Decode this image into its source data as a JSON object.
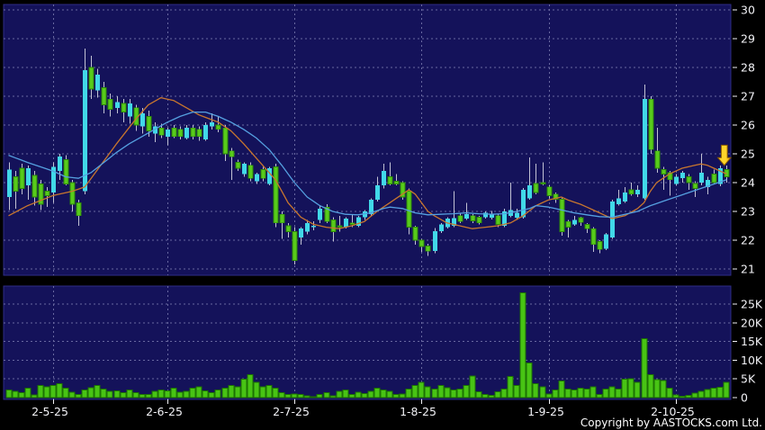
{
  "copyright": "Copyright by AASTOCKS.com Ltd.",
  "colors": {
    "background": "#000000",
    "panel_bg": "#14125a",
    "panel_border": "#2e2c86",
    "grid": "#8585b8",
    "axis_text": "#f2f2f6",
    "wick": "#c2c2d4",
    "candle_up": "#41d8e8",
    "candle_down": "#58cb1b",
    "candle_down_border": "#2d8a08",
    "volume_bar": "#48c414",
    "volume_bar_border": "#1c7203",
    "ma_fast": "#c8762e",
    "ma_slow": "#55a0e0",
    "arrow_fill": "#ffd42a",
    "arrow_fill_dark": "#e89b00",
    "arrow_border": "#8a5a00"
  },
  "chart_data": {
    "type": "candlestick",
    "title": "",
    "price_axis_labels": [
      "30",
      "29",
      "28",
      "27",
      "26",
      "25",
      "24",
      "23",
      "22",
      "21"
    ],
    "price_axis_values": [
      30,
      29,
      28,
      27,
      26,
      25,
      24,
      23,
      22,
      21
    ],
    "price_range": [
      21,
      30
    ],
    "volume_axis_labels": [
      "25K",
      "20K",
      "15K",
      "10K",
      "5K",
      "0"
    ],
    "volume_axis_values_k": [
      25,
      20,
      15,
      10,
      5,
      0
    ],
    "volume_range_k": [
      0,
      25
    ],
    "date_labels": [
      "2-5-25",
      "2-6-25",
      "2-7-25",
      "1-8-25",
      "1-9-25",
      "2-10-25"
    ],
    "x_tick_indices": [
      7,
      25,
      45,
      65,
      85,
      105
    ],
    "grid": "dashed",
    "legend": "none",
    "candles_format": [
      "open",
      "high",
      "low",
      "close",
      "volume_k"
    ],
    "candles": [
      [
        23.5,
        24.7,
        23.05,
        24.45,
        2.1
      ],
      [
        24.2,
        24.4,
        23.1,
        23.7,
        1.7
      ],
      [
        24.5,
        24.65,
        23.6,
        23.8,
        1.3
      ],
      [
        23.9,
        24.6,
        23.4,
        24.5,
        2.5
      ],
      [
        24.25,
        24.4,
        23.2,
        23.5,
        0.7
      ],
      [
        23.95,
        24.1,
        23.05,
        23.25,
        3.3
      ],
      [
        23.7,
        23.85,
        23.15,
        23.55,
        2.9
      ],
      [
        23.65,
        24.7,
        23.3,
        24.55,
        3.3
      ],
      [
        24.4,
        25.0,
        24.1,
        24.9,
        3.7
      ],
      [
        24.8,
        24.95,
        23.9,
        23.95,
        2.5
      ],
      [
        24.0,
        24.1,
        23.0,
        23.25,
        1.5
      ],
      [
        23.3,
        23.4,
        22.5,
        22.85,
        0.9
      ],
      [
        23.7,
        28.65,
        23.6,
        27.9,
        2.1
      ],
      [
        28.0,
        28.4,
        26.9,
        27.25,
        2.6
      ],
      [
        27.2,
        27.95,
        26.95,
        27.75,
        3.3
      ],
      [
        27.3,
        27.5,
        26.4,
        26.7,
        2.3
      ],
      [
        26.9,
        27.1,
        26.3,
        26.55,
        1.7
      ],
      [
        26.6,
        27.0,
        26.4,
        26.8,
        1.8
      ],
      [
        26.75,
        26.9,
        26.1,
        26.45,
        1.3
      ],
      [
        26.3,
        26.9,
        26.05,
        26.75,
        2.1
      ],
      [
        26.6,
        26.7,
        25.8,
        26.0,
        1.3
      ],
      [
        25.95,
        26.6,
        25.7,
        26.4,
        0.9
      ],
      [
        26.3,
        26.5,
        25.6,
        25.8,
        0.9
      ],
      [
        25.7,
        26.1,
        25.4,
        25.95,
        1.7
      ],
      [
        25.9,
        26.05,
        25.55,
        25.65,
        2.1
      ],
      [
        25.6,
        25.9,
        25.3,
        25.85,
        1.8
      ],
      [
        25.9,
        26.0,
        25.55,
        25.6,
        2.5
      ],
      [
        25.85,
        25.95,
        25.5,
        25.6,
        1.4
      ],
      [
        25.55,
        26.0,
        25.5,
        25.9,
        1.7
      ],
      [
        25.9,
        26.0,
        25.5,
        25.6,
        2.5
      ],
      [
        25.85,
        25.95,
        25.45,
        25.6,
        2.9
      ],
      [
        25.5,
        26.1,
        25.45,
        26.0,
        1.8
      ],
      [
        25.95,
        26.4,
        25.85,
        26.1,
        1.3
      ],
      [
        26.0,
        26.3,
        25.75,
        25.85,
        2.1
      ],
      [
        25.9,
        26.0,
        24.75,
        25.0,
        2.5
      ],
      [
        25.1,
        25.2,
        24.1,
        24.9,
        3.3
      ],
      [
        24.7,
        24.8,
        24.4,
        24.5,
        2.9
      ],
      [
        24.3,
        24.7,
        24.2,
        24.65,
        4.9
      ],
      [
        24.6,
        24.7,
        24.05,
        24.15,
        6.1
      ],
      [
        24.05,
        24.35,
        23.95,
        24.3,
        4.1
      ],
      [
        24.45,
        24.55,
        24.05,
        24.15,
        2.9
      ],
      [
        23.95,
        24.55,
        23.9,
        24.5,
        3.3
      ],
      [
        24.55,
        24.65,
        22.45,
        22.6,
        2.5
      ],
      [
        22.9,
        23.0,
        22.05,
        22.6,
        1.3
      ],
      [
        22.5,
        22.6,
        22.1,
        22.3,
        0.9
      ],
      [
        22.3,
        22.45,
        21.15,
        21.3,
        1.0
      ],
      [
        22.1,
        22.45,
        21.85,
        22.4,
        0.9
      ],
      [
        22.3,
        22.7,
        22.2,
        22.6,
        0.5
      ],
      [
        22.5,
        22.65,
        22.35,
        22.5,
        0.3
      ],
      [
        22.7,
        23.2,
        22.6,
        23.1,
        0.9
      ],
      [
        23.15,
        23.25,
        22.6,
        22.65,
        1.3
      ],
      [
        22.7,
        22.8,
        21.95,
        22.3,
        0.5
      ],
      [
        22.5,
        22.85,
        22.3,
        22.45,
        1.7
      ],
      [
        22.45,
        22.8,
        22.4,
        22.75,
        2.1
      ],
      [
        22.6,
        22.9,
        22.45,
        22.55,
        0.9
      ],
      [
        22.5,
        22.85,
        22.45,
        22.8,
        1.5
      ],
      [
        22.8,
        23.05,
        22.7,
        23.0,
        1.1
      ],
      [
        22.9,
        23.45,
        22.85,
        23.4,
        1.7
      ],
      [
        23.4,
        24.2,
        23.35,
        23.9,
        2.5
      ],
      [
        23.9,
        24.65,
        23.8,
        24.4,
        2.1
      ],
      [
        24.2,
        24.7,
        23.9,
        23.95,
        1.7
      ],
      [
        24.05,
        24.3,
        23.9,
        23.95,
        0.8
      ],
      [
        24.0,
        24.05,
        23.4,
        23.5,
        1.0
      ],
      [
        23.7,
        23.8,
        22.2,
        22.45,
        2.3
      ],
      [
        22.45,
        22.5,
        21.85,
        22.0,
        3.3
      ],
      [
        22.0,
        22.05,
        21.6,
        21.78,
        4.1
      ],
      [
        21.8,
        21.88,
        21.45,
        21.62,
        2.9
      ],
      [
        21.62,
        22.42,
        21.55,
        22.32,
        2.3
      ],
      [
        22.32,
        22.6,
        22.25,
        22.55,
        3.3
      ],
      [
        22.45,
        22.8,
        22.4,
        22.75,
        2.6
      ],
      [
        22.5,
        23.7,
        22.45,
        22.77,
        2.1
      ],
      [
        22.85,
        22.95,
        22.6,
        22.65,
        2.3
      ],
      [
        22.75,
        23.3,
        22.7,
        22.9,
        3.3
      ],
      [
        22.85,
        22.9,
        22.6,
        22.67,
        5.8
      ],
      [
        22.8,
        22.85,
        22.55,
        22.6,
        1.6
      ],
      [
        22.8,
        23.0,
        22.75,
        22.95,
        0.9
      ],
      [
        22.78,
        23.02,
        22.72,
        22.9,
        0.6
      ],
      [
        22.85,
        22.92,
        22.45,
        22.55,
        1.6
      ],
      [
        22.5,
        23.1,
        22.45,
        23.0,
        2.3
      ],
      [
        22.85,
        24.0,
        22.8,
        23.05,
        5.7
      ],
      [
        22.78,
        23.1,
        22.7,
        22.95,
        3.3
      ],
      [
        22.8,
        23.82,
        22.75,
        23.75,
        28.0
      ],
      [
        23.45,
        24.88,
        23.4,
        23.9,
        9.3
      ],
      [
        23.97,
        24.65,
        23.6,
        23.66,
        3.7
      ],
      [
        24.0,
        24.7,
        23.9,
        23.98,
        2.9
      ],
      [
        23.85,
        23.9,
        23.45,
        23.55,
        1.0
      ],
      [
        23.6,
        23.65,
        23.3,
        23.42,
        2.1
      ],
      [
        23.42,
        23.48,
        22.15,
        22.3,
        4.5
      ],
      [
        22.65,
        22.7,
        22.1,
        22.45,
        2.3
      ],
      [
        22.55,
        22.85,
        22.5,
        22.7,
        2.1
      ],
      [
        22.78,
        22.82,
        22.5,
        22.62,
        2.5
      ],
      [
        22.55,
        22.6,
        22.25,
        22.4,
        2.3
      ],
      [
        22.4,
        22.45,
        21.6,
        21.85,
        2.9
      ],
      [
        21.95,
        22.0,
        21.55,
        21.68,
        0.9
      ],
      [
        21.7,
        22.25,
        21.65,
        22.2,
        2.3
      ],
      [
        22.1,
        23.4,
        22.05,
        23.35,
        2.9
      ],
      [
        23.25,
        23.75,
        23.2,
        23.45,
        2.3
      ],
      [
        23.35,
        23.85,
        23.3,
        23.65,
        4.9
      ],
      [
        23.75,
        24.0,
        23.55,
        23.6,
        5.0
      ],
      [
        23.6,
        23.9,
        23.5,
        23.75,
        4.1
      ],
      [
        23.45,
        27.4,
        23.4,
        26.9,
        15.7
      ],
      [
        26.9,
        27.0,
        25.0,
        25.15,
        6.1
      ],
      [
        25.1,
        25.9,
        24.35,
        24.5,
        4.8
      ],
      [
        24.45,
        24.55,
        23.75,
        24.3,
        4.6
      ],
      [
        24.35,
        24.4,
        23.55,
        24.1,
        2.5
      ],
      [
        23.95,
        24.3,
        23.9,
        24.2,
        0.7
      ],
      [
        24.15,
        24.4,
        24.0,
        24.35,
        0.4
      ],
      [
        24.2,
        24.3,
        23.75,
        24.0,
        0.6
      ],
      [
        23.97,
        24.05,
        23.5,
        23.8,
        1.2
      ],
      [
        24.0,
        25.0,
        23.9,
        24.35,
        1.7
      ],
      [
        23.85,
        24.2,
        23.6,
        24.1,
        2.2
      ],
      [
        24.3,
        24.45,
        23.95,
        24.0,
        2.5
      ],
      [
        23.95,
        24.6,
        23.88,
        24.5,
        2.8
      ],
      [
        24.45,
        24.6,
        24.0,
        24.2,
        4.1
      ]
    ],
    "overlays": [
      {
        "name": "ma-fast",
        "color_key": "ma_fast",
        "keypoints": [
          [
            0,
            22.85
          ],
          [
            3,
            23.2
          ],
          [
            7,
            23.55
          ],
          [
            10,
            23.7
          ],
          [
            12,
            23.85
          ],
          [
            14,
            24.45
          ],
          [
            17,
            25.35
          ],
          [
            20,
            26.2
          ],
          [
            22,
            26.7
          ],
          [
            24,
            26.95
          ],
          [
            26,
            26.85
          ],
          [
            28,
            26.6
          ],
          [
            30,
            26.35
          ],
          [
            33,
            26.1
          ],
          [
            35,
            25.8
          ],
          [
            37,
            25.35
          ],
          [
            39,
            24.85
          ],
          [
            41,
            24.35
          ],
          [
            42,
            24.1
          ],
          [
            44,
            23.3
          ],
          [
            46,
            22.8
          ],
          [
            48,
            22.55
          ],
          [
            50,
            22.45
          ],
          [
            52,
            22.4
          ],
          [
            54,
            22.5
          ],
          [
            56,
            22.65
          ],
          [
            58,
            23.0
          ],
          [
            60,
            23.3
          ],
          [
            62,
            23.6
          ],
          [
            63,
            23.75
          ],
          [
            64,
            23.6
          ],
          [
            65,
            23.3
          ],
          [
            66,
            23.0
          ],
          [
            67,
            22.85
          ],
          [
            69,
            22.6
          ],
          [
            71,
            22.5
          ],
          [
            73,
            22.4
          ],
          [
            75,
            22.45
          ],
          [
            77,
            22.5
          ],
          [
            79,
            22.6
          ],
          [
            81,
            22.85
          ],
          [
            83,
            23.2
          ],
          [
            85,
            23.4
          ],
          [
            87,
            23.5
          ],
          [
            88,
            23.4
          ],
          [
            90,
            23.25
          ],
          [
            92,
            23.05
          ],
          [
            94,
            22.85
          ],
          [
            95,
            22.75
          ],
          [
            97,
            22.85
          ],
          [
            99,
            23.1
          ],
          [
            100,
            23.3
          ],
          [
            101,
            23.7
          ],
          [
            102,
            24.0
          ],
          [
            104,
            24.3
          ],
          [
            106,
            24.5
          ],
          [
            108,
            24.6
          ],
          [
            109,
            24.65
          ],
          [
            110,
            24.6
          ],
          [
            111,
            24.5
          ],
          [
            112,
            24.4
          ],
          [
            113,
            24.3
          ]
        ]
      },
      {
        "name": "ma-slow",
        "color_key": "ma_slow",
        "keypoints": [
          [
            0,
            24.95
          ],
          [
            3,
            24.7
          ],
          [
            7,
            24.4
          ],
          [
            9,
            24.2
          ],
          [
            11,
            24.15
          ],
          [
            13,
            24.35
          ],
          [
            15,
            24.7
          ],
          [
            17,
            25.05
          ],
          [
            19,
            25.35
          ],
          [
            21,
            25.6
          ],
          [
            23,
            25.85
          ],
          [
            25,
            26.1
          ],
          [
            27,
            26.3
          ],
          [
            29,
            26.45
          ],
          [
            31,
            26.45
          ],
          [
            33,
            26.3
          ],
          [
            35,
            26.1
          ],
          [
            37,
            25.85
          ],
          [
            39,
            25.55
          ],
          [
            41,
            25.15
          ],
          [
            43,
            24.6
          ],
          [
            45,
            24.0
          ],
          [
            47,
            23.5
          ],
          [
            49,
            23.2
          ],
          [
            51,
            23.0
          ],
          [
            53,
            22.9
          ],
          [
            55,
            22.88
          ],
          [
            57,
            22.95
          ],
          [
            59,
            23.1
          ],
          [
            60,
            23.15
          ],
          [
            62,
            23.1
          ],
          [
            64,
            22.95
          ],
          [
            66,
            22.88
          ],
          [
            68,
            22.9
          ],
          [
            70,
            22.92
          ],
          [
            72,
            22.95
          ],
          [
            74,
            22.92
          ],
          [
            76,
            22.9
          ],
          [
            78,
            22.92
          ],
          [
            80,
            23.0
          ],
          [
            82,
            23.1
          ],
          [
            83,
            23.2
          ],
          [
            85,
            23.15
          ],
          [
            87,
            23.05
          ],
          [
            89,
            22.95
          ],
          [
            91,
            22.88
          ],
          [
            93,
            22.82
          ],
          [
            95,
            22.8
          ],
          [
            97,
            22.9
          ],
          [
            99,
            23.0
          ],
          [
            101,
            23.2
          ],
          [
            103,
            23.35
          ],
          [
            105,
            23.5
          ],
          [
            107,
            23.65
          ],
          [
            109,
            23.8
          ],
          [
            111,
            23.95
          ],
          [
            113,
            24.1
          ]
        ]
      }
    ],
    "marker": {
      "type": "down-arrow",
      "index": 113,
      "price_tip": 24.6,
      "price_top": 25.3
    }
  }
}
